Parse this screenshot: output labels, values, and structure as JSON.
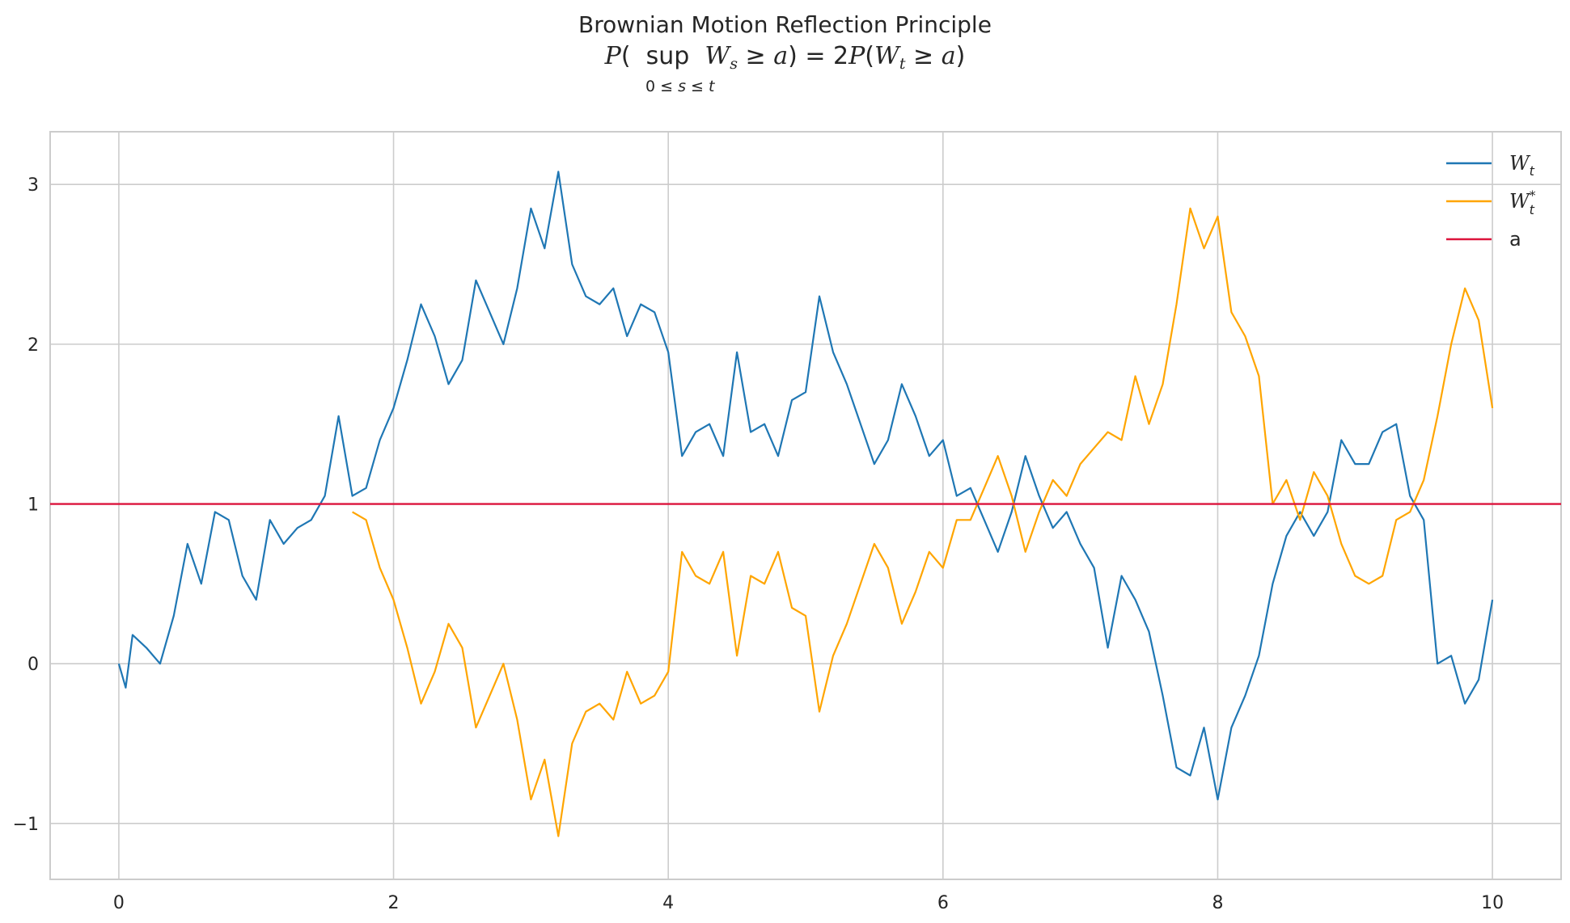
{
  "title": {
    "line1": "Brownian Motion Reflection Principle"
  },
  "chart_data": {
    "type": "line",
    "title": "Brownian Motion Reflection Principle",
    "xlabel": "",
    "ylabel": "",
    "xlim": [
      -0.5,
      10.5
    ],
    "ylim": [
      -1.35,
      3.33
    ],
    "xticks": [
      0,
      2,
      4,
      6,
      8,
      10
    ],
    "yticks": [
      -1,
      0,
      1,
      2,
      3
    ],
    "xtick_labels": [
      "0",
      "2",
      "4",
      "6",
      "8",
      "10"
    ],
    "ytick_labels": [
      "−1",
      "0",
      "1",
      "2",
      "3"
    ],
    "grid": true,
    "legend_position": "top-right",
    "barrier": {
      "name": "a",
      "value": 1.0,
      "color": "#dc143c"
    },
    "series": [
      {
        "name": "W_t",
        "color": "#1f77b4",
        "x": [
          0,
          0.05,
          0.1,
          0.2,
          0.3,
          0.4,
          0.5,
          0.6,
          0.7,
          0.8,
          0.9,
          1.0,
          1.1,
          1.2,
          1.3,
          1.4,
          1.5,
          1.6,
          1.7,
          1.8,
          1.9,
          2.0,
          2.1,
          2.2,
          2.3,
          2.4,
          2.5,
          2.6,
          2.7,
          2.8,
          2.9,
          3.0,
          3.1,
          3.2,
          3.3,
          3.4,
          3.5,
          3.6,
          3.7,
          3.8,
          3.9,
          4.0,
          4.1,
          4.2,
          4.3,
          4.4,
          4.5,
          4.6,
          4.7,
          4.8,
          4.9,
          5.0,
          5.1,
          5.2,
          5.3,
          5.4,
          5.5,
          5.6,
          5.7,
          5.8,
          5.9,
          6.0,
          6.1,
          6.2,
          6.3,
          6.4,
          6.5,
          6.6,
          6.7,
          6.8,
          6.9,
          7.0,
          7.1,
          7.2,
          7.3,
          7.4,
          7.5,
          7.6,
          7.7,
          7.8,
          7.9,
          8.0,
          8.1,
          8.2,
          8.3,
          8.4,
          8.5,
          8.6,
          8.7,
          8.8,
          8.9,
          9.0,
          9.1,
          9.2,
          9.3,
          9.4,
          9.5,
          9.6,
          9.7,
          9.8,
          9.9,
          10.0
        ],
        "y": [
          0,
          -0.15,
          0.18,
          0.1,
          0.0,
          0.3,
          0.75,
          0.5,
          0.95,
          0.9,
          0.55,
          0.4,
          0.9,
          0.75,
          0.85,
          0.9,
          1.05,
          1.55,
          1.05,
          1.1,
          1.4,
          1.6,
          1.9,
          2.25,
          2.05,
          1.75,
          1.9,
          2.4,
          2.2,
          2.0,
          2.35,
          2.85,
          2.6,
          3.08,
          2.5,
          2.3,
          2.25,
          2.35,
          2.05,
          2.25,
          2.2,
          1.95,
          1.3,
          1.45,
          1.5,
          1.3,
          1.95,
          1.45,
          1.5,
          1.3,
          1.65,
          1.7,
          2.3,
          1.95,
          1.75,
          1.5,
          1.25,
          1.4,
          1.75,
          1.55,
          1.3,
          1.4,
          1.05,
          1.1,
          0.9,
          0.7,
          0.95,
          1.3,
          1.05,
          0.85,
          0.95,
          0.75,
          0.6,
          0.1,
          0.55,
          0.4,
          0.2,
          -0.2,
          -0.65,
          -0.7,
          -0.4,
          -0.85,
          -0.4,
          -0.2,
          0.05,
          0.5,
          0.8,
          0.95,
          0.8,
          0.95,
          1.4,
          1.25,
          1.25,
          1.45,
          1.5,
          1.05,
          0.9,
          0.0,
          0.05,
          -0.25,
          -0.1,
          0.4
        ]
      },
      {
        "name": "W_t^*",
        "color": "#ffa500",
        "x": [
          1.7,
          1.8,
          1.9,
          2.0,
          2.1,
          2.2,
          2.3,
          2.4,
          2.5,
          2.6,
          2.7,
          2.8,
          2.9,
          3.0,
          3.1,
          3.2,
          3.3,
          3.4,
          3.5,
          3.6,
          3.7,
          3.8,
          3.9,
          4.0,
          4.1,
          4.2,
          4.3,
          4.4,
          4.5,
          4.6,
          4.7,
          4.8,
          4.9,
          5.0,
          5.1,
          5.2,
          5.3,
          5.4,
          5.5,
          5.6,
          5.7,
          5.8,
          5.9,
          6.0,
          6.1,
          6.2,
          6.3,
          6.4,
          6.5,
          6.6,
          6.7,
          6.8,
          6.9,
          7.0,
          7.1,
          7.2,
          7.3,
          7.4,
          7.5,
          7.6,
          7.7,
          7.8,
          7.9,
          8.0,
          8.1,
          8.2,
          8.3,
          8.4,
          8.5,
          8.6,
          8.7,
          8.8,
          8.9,
          9.0,
          9.1,
          9.2,
          9.3,
          9.4,
          9.5,
          9.6,
          9.7,
          9.8,
          9.9,
          10.0
        ],
        "y": [
          0.95,
          0.9,
          0.6,
          0.4,
          0.1,
          -0.25,
          -0.05,
          0.25,
          0.1,
          -0.4,
          -0.2,
          0.0,
          -0.35,
          -0.85,
          -0.6,
          -1.08,
          -0.5,
          -0.3,
          -0.25,
          -0.35,
          -0.05,
          -0.25,
          -0.2,
          -0.05,
          0.7,
          0.55,
          0.5,
          0.7,
          0.05,
          0.55,
          0.5,
          0.7,
          0.35,
          0.3,
          -0.3,
          0.05,
          0.25,
          0.5,
          0.75,
          0.6,
          0.25,
          0.45,
          0.7,
          0.6,
          0.9,
          0.9,
          1.1,
          1.3,
          1.05,
          0.7,
          0.95,
          1.15,
          1.05,
          1.25,
          1.35,
          1.45,
          1.4,
          1.8,
          1.5,
          1.75,
          2.25,
          2.85,
          2.6,
          2.8,
          2.2,
          2.05,
          1.8,
          1.0,
          1.15,
          0.9,
          1.2,
          1.05,
          0.75,
          0.55,
          0.5,
          0.55,
          0.9,
          0.95,
          1.15,
          1.55,
          2.0,
          2.35,
          2.15,
          1.6
        ]
      }
    ]
  }
}
